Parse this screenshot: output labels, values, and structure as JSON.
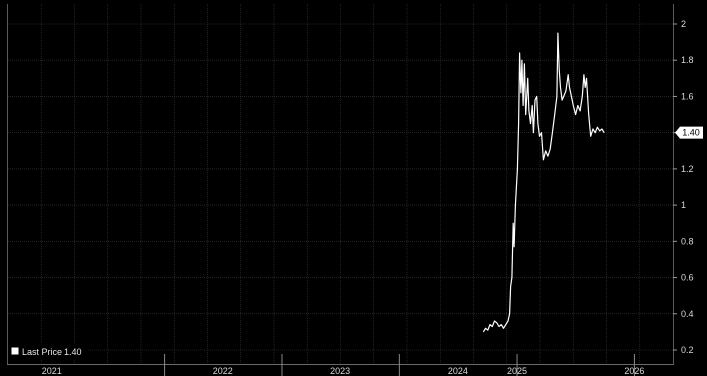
{
  "chart_data": {
    "type": "line",
    "title": "",
    "xlabel": "",
    "ylabel": "",
    "ylim": [
      0.12,
      2.12
    ],
    "y_ticks": [
      0.2,
      0.4,
      0.6,
      0.8,
      1,
      1.2,
      1.4,
      1.6,
      1.8,
      2
    ],
    "y_tick_labels": [
      "0.2",
      "0.4",
      "0.6",
      "0.8",
      "1",
      "1.2",
      "1.4",
      "1.6",
      "1.8",
      "2"
    ],
    "xlim": [
      "2020-09-01",
      "2026-05-01"
    ],
    "x_tick_labels": [
      {
        "label": "2021",
        "mid": "2021-01-15"
      },
      {
        "label": "2022",
        "mid": "2022-07-01"
      },
      {
        "label": "2023",
        "mid": "2023-07-01"
      },
      {
        "label": "2024",
        "mid": "2024-07-01"
      },
      {
        "label": "2025",
        "mid": "2025-01-01"
      },
      {
        "label": "2026",
        "mid": "2026-01-01"
      }
    ],
    "year_dividers": [
      "2022-01-01",
      "2023-01-01",
      "2024-01-01",
      "2025-01-01",
      "2026-01-01"
    ],
    "grid": true,
    "legend_position": "bottom-left",
    "line_color": "#ffffff",
    "series": [
      {
        "name": "Last Price",
        "last_value": "1.40",
        "points": [
          [
            "2024-09-18",
            0.3
          ],
          [
            "2024-09-25",
            0.32
          ],
          [
            "2024-10-02",
            0.31
          ],
          [
            "2024-10-09",
            0.34
          ],
          [
            "2024-10-16",
            0.33
          ],
          [
            "2024-10-23",
            0.36
          ],
          [
            "2024-10-30",
            0.35
          ],
          [
            "2024-11-06",
            0.33
          ],
          [
            "2024-11-13",
            0.34
          ],
          [
            "2024-11-20",
            0.32
          ],
          [
            "2024-11-27",
            0.34
          ],
          [
            "2024-12-04",
            0.36
          ],
          [
            "2024-12-09",
            0.4
          ],
          [
            "2024-12-12",
            0.55
          ],
          [
            "2024-12-16",
            0.6
          ],
          [
            "2024-12-20",
            0.9
          ],
          [
            "2024-12-23",
            0.77
          ],
          [
            "2024-12-27",
            1.0
          ],
          [
            "2025-01-02",
            1.2
          ],
          [
            "2025-01-06",
            1.45
          ],
          [
            "2025-01-09",
            1.84
          ],
          [
            "2025-01-13",
            1.62
          ],
          [
            "2025-01-16",
            1.8
          ],
          [
            "2025-01-20",
            1.55
          ],
          [
            "2025-01-24",
            1.78
          ],
          [
            "2025-01-28",
            1.5
          ],
          [
            "2025-02-03",
            1.7
          ],
          [
            "2025-02-07",
            1.52
          ],
          [
            "2025-02-12",
            1.45
          ],
          [
            "2025-02-17",
            1.55
          ],
          [
            "2025-02-21",
            1.4
          ],
          [
            "2025-02-26",
            1.58
          ],
          [
            "2025-03-03",
            1.6
          ],
          [
            "2025-03-07",
            1.45
          ],
          [
            "2025-03-12",
            1.38
          ],
          [
            "2025-03-18",
            1.4
          ],
          [
            "2025-03-24",
            1.25
          ],
          [
            "2025-03-31",
            1.3
          ],
          [
            "2025-04-07",
            1.27
          ],
          [
            "2025-04-14",
            1.31
          ],
          [
            "2025-04-21",
            1.4
          ],
          [
            "2025-04-28",
            1.5
          ],
          [
            "2025-05-05",
            1.6
          ],
          [
            "2025-05-08",
            1.95
          ],
          [
            "2025-05-12",
            1.75
          ],
          [
            "2025-05-16",
            1.65
          ],
          [
            "2025-05-21",
            1.58
          ],
          [
            "2025-05-26",
            1.6
          ],
          [
            "2025-06-02",
            1.63
          ],
          [
            "2025-06-09",
            1.72
          ],
          [
            "2025-06-13",
            1.65
          ],
          [
            "2025-06-19",
            1.6
          ],
          [
            "2025-06-25",
            1.55
          ],
          [
            "2025-07-02",
            1.5
          ],
          [
            "2025-07-09",
            1.55
          ],
          [
            "2025-07-16",
            1.52
          ],
          [
            "2025-07-23",
            1.6
          ],
          [
            "2025-07-28",
            1.72
          ],
          [
            "2025-08-01",
            1.65
          ],
          [
            "2025-08-05",
            1.7
          ],
          [
            "2025-08-12",
            1.5
          ],
          [
            "2025-08-18",
            1.38
          ],
          [
            "2025-08-25",
            1.42
          ],
          [
            "2025-09-01",
            1.4
          ],
          [
            "2025-09-08",
            1.43
          ],
          [
            "2025-09-15",
            1.41
          ],
          [
            "2025-09-22",
            1.42
          ],
          [
            "2025-09-29",
            1.4
          ]
        ]
      }
    ]
  }
}
